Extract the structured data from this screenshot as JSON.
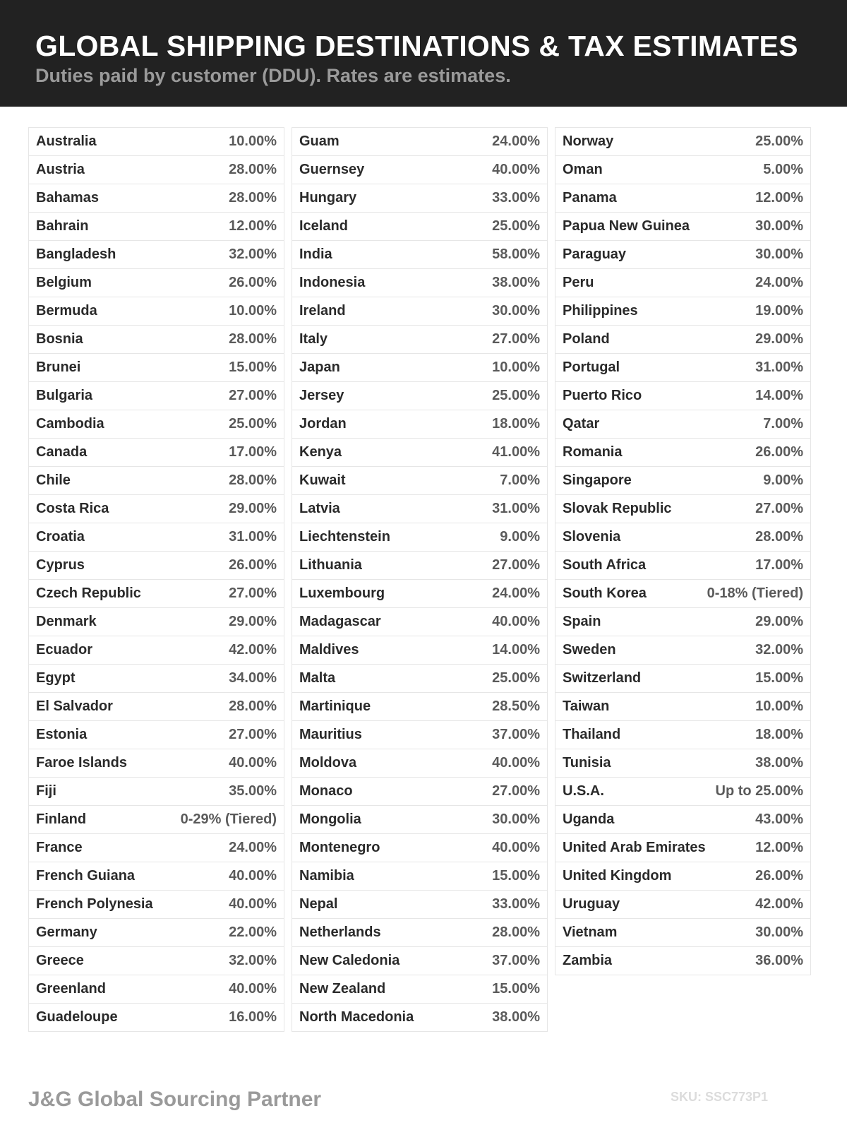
{
  "header": {
    "title": "GLOBAL SHIPPING DESTINATIONS & TAX ESTIMATES",
    "subtitle": "Duties paid by customer (DDU). Rates are estimates."
  },
  "columns": [
    [
      [
        "Australia",
        "10.00%"
      ],
      [
        "Austria",
        "28.00%"
      ],
      [
        "Bahamas",
        "28.00%"
      ],
      [
        "Bahrain",
        "12.00%"
      ],
      [
        "Bangladesh",
        "32.00%"
      ],
      [
        "Belgium",
        "26.00%"
      ],
      [
        "Bermuda",
        "10.00%"
      ],
      [
        "Bosnia",
        "28.00%"
      ],
      [
        "Brunei",
        "15.00%"
      ],
      [
        "Bulgaria",
        "27.00%"
      ],
      [
        "Cambodia",
        "25.00%"
      ],
      [
        "Canada",
        "17.00%"
      ],
      [
        "Chile",
        "28.00%"
      ],
      [
        "Costa Rica",
        "29.00%"
      ],
      [
        "Croatia",
        "31.00%"
      ],
      [
        "Cyprus",
        "26.00%"
      ],
      [
        "Czech Republic",
        "27.00%"
      ],
      [
        "Denmark",
        "29.00%"
      ],
      [
        "Ecuador",
        "42.00%"
      ],
      [
        "Egypt",
        "34.00%"
      ],
      [
        "El Salvador",
        "28.00%"
      ],
      [
        "Estonia",
        "27.00%"
      ],
      [
        "Faroe Islands",
        "40.00%"
      ],
      [
        "Fiji",
        "35.00%"
      ],
      [
        "Finland",
        "0-29% (Tiered)"
      ],
      [
        "France",
        "24.00%"
      ],
      [
        "French Guiana",
        "40.00%"
      ],
      [
        "French Polynesia",
        "40.00%"
      ],
      [
        "Germany",
        "22.00%"
      ],
      [
        "Greece",
        "32.00%"
      ],
      [
        "Greenland",
        "40.00%"
      ],
      [
        "Guadeloupe",
        "16.00%"
      ]
    ],
    [
      [
        "Guam",
        "24.00%"
      ],
      [
        "Guernsey",
        "40.00%"
      ],
      [
        "Hungary",
        "33.00%"
      ],
      [
        "Iceland",
        "25.00%"
      ],
      [
        "India",
        "58.00%"
      ],
      [
        "Indonesia",
        "38.00%"
      ],
      [
        "Ireland",
        "30.00%"
      ],
      [
        "Italy",
        "27.00%"
      ],
      [
        "Japan",
        "10.00%"
      ],
      [
        "Jersey",
        "25.00%"
      ],
      [
        "Jordan",
        "18.00%"
      ],
      [
        "Kenya",
        "41.00%"
      ],
      [
        "Kuwait",
        "7.00%"
      ],
      [
        "Latvia",
        "31.00%"
      ],
      [
        "Liechtenstein",
        "9.00%"
      ],
      [
        "Lithuania",
        "27.00%"
      ],
      [
        "Luxembourg",
        "24.00%"
      ],
      [
        "Madagascar",
        "40.00%"
      ],
      [
        "Maldives",
        "14.00%"
      ],
      [
        "Malta",
        "25.00%"
      ],
      [
        "Martinique",
        "28.50%"
      ],
      [
        "Mauritius",
        "37.00%"
      ],
      [
        "Moldova",
        "40.00%"
      ],
      [
        "Monaco",
        "27.00%"
      ],
      [
        "Mongolia",
        "30.00%"
      ],
      [
        "Montenegro",
        "40.00%"
      ],
      [
        "Namibia",
        "15.00%"
      ],
      [
        "Nepal",
        "33.00%"
      ],
      [
        "Netherlands",
        "28.00%"
      ],
      [
        "New Caledonia",
        "37.00%"
      ],
      [
        "New Zealand",
        "15.00%"
      ],
      [
        "North Macedonia",
        "38.00%"
      ]
    ],
    [
      [
        "Norway",
        "25.00%"
      ],
      [
        "Oman",
        "5.00%"
      ],
      [
        "Panama",
        "12.00%"
      ],
      [
        "Papua New Guinea",
        "30.00%"
      ],
      [
        "Paraguay",
        "30.00%"
      ],
      [
        "Peru",
        "24.00%"
      ],
      [
        "Philippines",
        "19.00%"
      ],
      [
        "Poland",
        "29.00%"
      ],
      [
        "Portugal",
        "31.00%"
      ],
      [
        "Puerto Rico",
        "14.00%"
      ],
      [
        "Qatar",
        "7.00%"
      ],
      [
        "Romania",
        "26.00%"
      ],
      [
        "Singapore",
        "9.00%"
      ],
      [
        "Slovak Republic",
        "27.00%"
      ],
      [
        "Slovenia",
        "28.00%"
      ],
      [
        "South Africa",
        "17.00%"
      ],
      [
        "South Korea",
        "0-18% (Tiered)"
      ],
      [
        "Spain",
        "29.00%"
      ],
      [
        "Sweden",
        "32.00%"
      ],
      [
        "Switzerland",
        "15.00%"
      ],
      [
        "Taiwan",
        "10.00%"
      ],
      [
        "Thailand",
        "18.00%"
      ],
      [
        "Tunisia",
        "38.00%"
      ],
      [
        "U.S.A.",
        "Up to 25.00%"
      ],
      [
        "Uganda",
        "43.00%"
      ],
      [
        "United Arab Emirates",
        "12.00%"
      ],
      [
        "United Kingdom",
        "26.00%"
      ],
      [
        "Uruguay",
        "42.00%"
      ],
      [
        "Vietnam",
        "30.00%"
      ],
      [
        "Zambia",
        "36.00%"
      ]
    ]
  ],
  "footer": {
    "brand": "J&G Global Sourcing Partner",
    "sku": "SKU: SSC773P1"
  }
}
